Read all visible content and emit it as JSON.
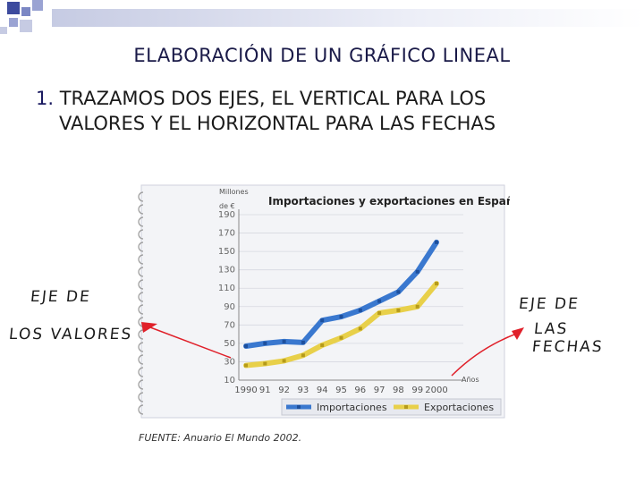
{
  "slide": {
    "title": "ELABORACIÓN DE UN GRÁFICO LINEAL",
    "step_number": "1.",
    "step_text_line1": "TRAZAMOS DOS EJES, EL VERTICAL PARA LOS",
    "step_text_line2": "VALORES Y EL HORIZONTAL PARA LAS FECHAS"
  },
  "annotations": {
    "left_line1": "EJE DE",
    "left_line2": "LOS VALORES",
    "right_line1": "EJE DE",
    "right_line2": "LAS FECHAS"
  },
  "colors": {
    "importaciones": "#3a78cf",
    "exportaciones": "#e8d04a",
    "annotation_red": "#e0202a",
    "deco_blue": "#3d4b9e"
  },
  "chart_data": {
    "type": "line",
    "title": "Importaciones y exportaciones en España",
    "ylabel_line1": "Millones",
    "ylabel_line2": "de €",
    "xlabel": "Años",
    "categories": [
      "1990",
      "91",
      "92",
      "93",
      "94",
      "95",
      "96",
      "97",
      "98",
      "99",
      "2000"
    ],
    "y_ticks": [
      10,
      30,
      50,
      70,
      90,
      110,
      130,
      150,
      170,
      190
    ],
    "ylim": [
      10,
      190
    ],
    "grid": true,
    "legend_position": "bottom",
    "series": [
      {
        "name": "Importaciones",
        "values": [
          47,
          50,
          52,
          51,
          75,
          79,
          86,
          96,
          106,
          128,
          160
        ]
      },
      {
        "name": "Exportaciones",
        "values": [
          26,
          28,
          31,
          37,
          48,
          56,
          66,
          83,
          86,
          90,
          115
        ]
      }
    ],
    "source": "FUENTE: Anuario El Mundo 2002."
  }
}
